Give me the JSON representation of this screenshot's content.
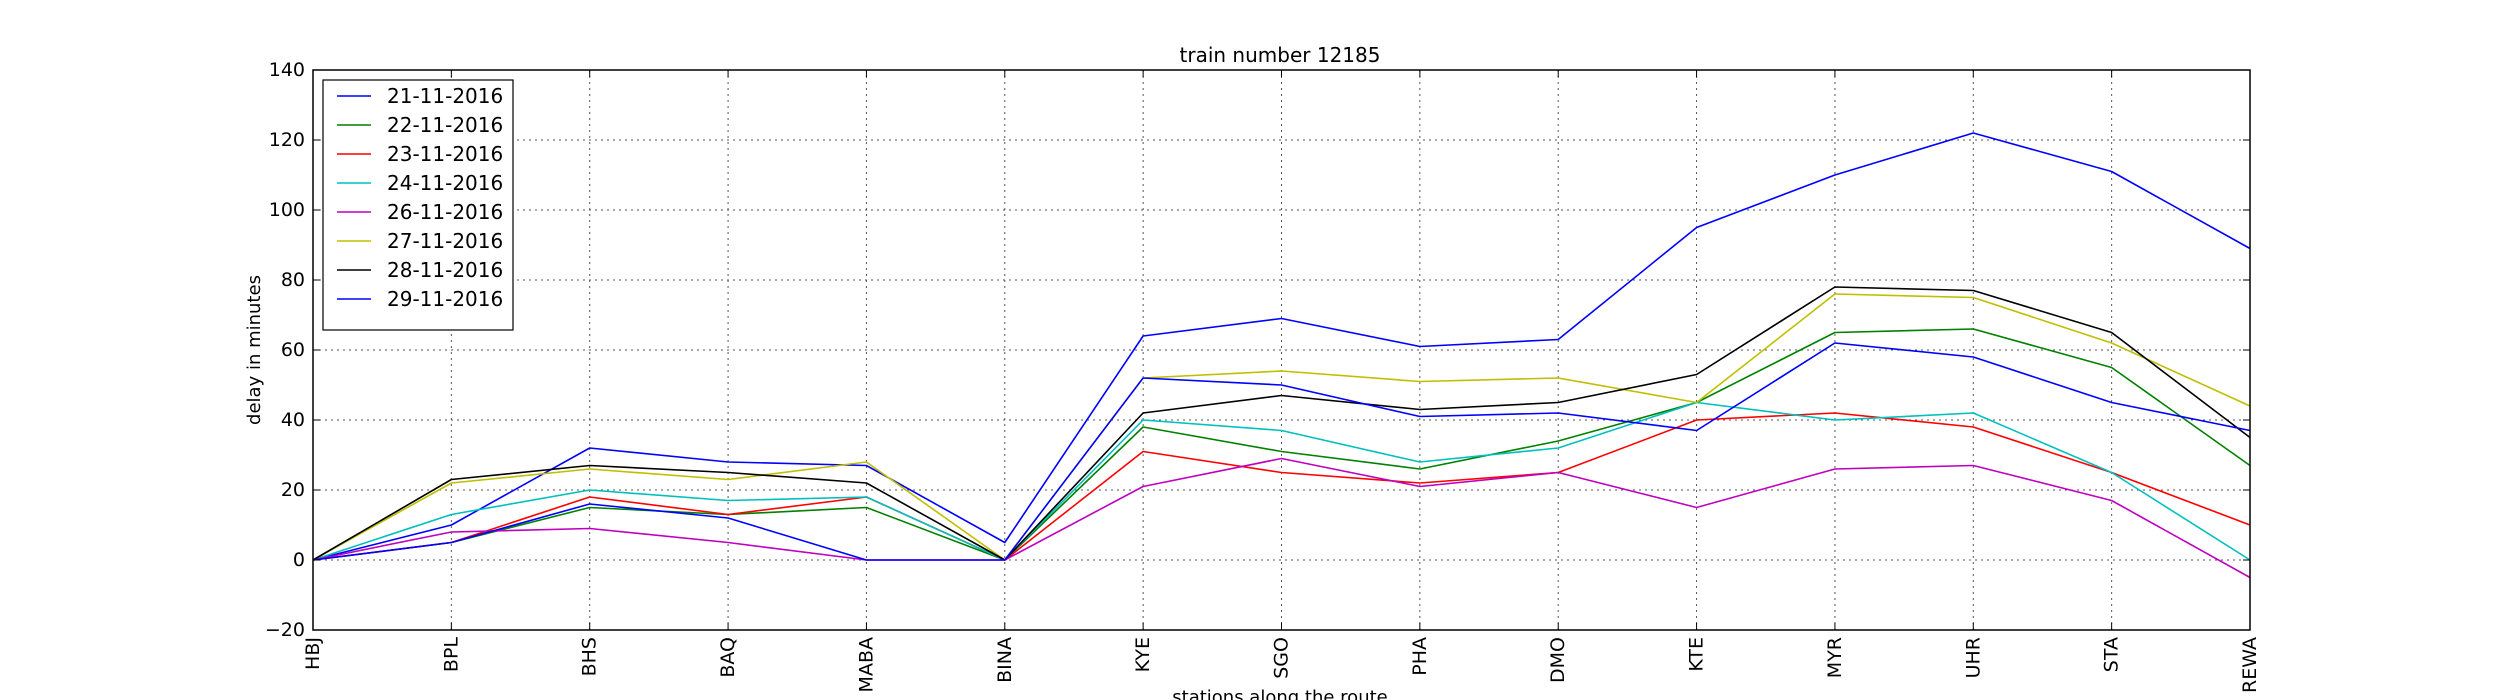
{
  "chart_data": {
    "type": "line",
    "title": "train number 12185",
    "xlabel": "stations along the route",
    "ylabel": "delay in minutes",
    "ylim": [
      -20,
      140
    ],
    "yticks": [
      -20,
      0,
      20,
      40,
      60,
      80,
      100,
      120,
      140
    ],
    "grid": true,
    "legend_position": "top-left",
    "categories": [
      "HBJ",
      "BPL",
      "BHS",
      "BAQ",
      "MABA",
      "BINA",
      "KYE",
      "SGO",
      "PHA",
      "DMO",
      "KTE",
      "MYR",
      "UHR",
      "STA",
      "REWA"
    ],
    "series": [
      {
        "name": "21-11-2016",
        "color": "#0000ff",
        "values": [
          0,
          10,
          32,
          28,
          27,
          5,
          64,
          69,
          61,
          63,
          95,
          110,
          122,
          111,
          89
        ]
      },
      {
        "name": "22-11-2016",
        "color": "#008000",
        "values": [
          0,
          5,
          15,
          13,
          15,
          0,
          38,
          31,
          26,
          34,
          45,
          65,
          66,
          55,
          27
        ]
      },
      {
        "name": "23-11-2016",
        "color": "#ff0000",
        "values": [
          0,
          5,
          18,
          13,
          18,
          0,
          31,
          25,
          22,
          25,
          40,
          42,
          38,
          25,
          10
        ]
      },
      {
        "name": "24-11-2016",
        "color": "#00bfbf",
        "values": [
          0,
          13,
          20,
          17,
          18,
          0,
          40,
          37,
          28,
          32,
          45,
          40,
          42,
          25,
          0
        ]
      },
      {
        "name": "26-11-2016",
        "color": "#bf00bf",
        "values": [
          0,
          8,
          9,
          5,
          0,
          0,
          21,
          29,
          21,
          25,
          15,
          26,
          27,
          17,
          -5
        ]
      },
      {
        "name": "27-11-2016",
        "color": "#bfbf00",
        "values": [
          0,
          22,
          26,
          23,
          28,
          0,
          52,
          54,
          51,
          52,
          45,
          76,
          75,
          62,
          44
        ]
      },
      {
        "name": "28-11-2016",
        "color": "#000000",
        "values": [
          0,
          23,
          27,
          25,
          22,
          0,
          42,
          47,
          43,
          45,
          53,
          78,
          77,
          65,
          35
        ]
      },
      {
        "name": "29-11-2016",
        "color": "#0000ff",
        "values": [
          0,
          5,
          16,
          12,
          0,
          0,
          52,
          50,
          41,
          42,
          37,
          62,
          58,
          45,
          37
        ]
      }
    ]
  }
}
